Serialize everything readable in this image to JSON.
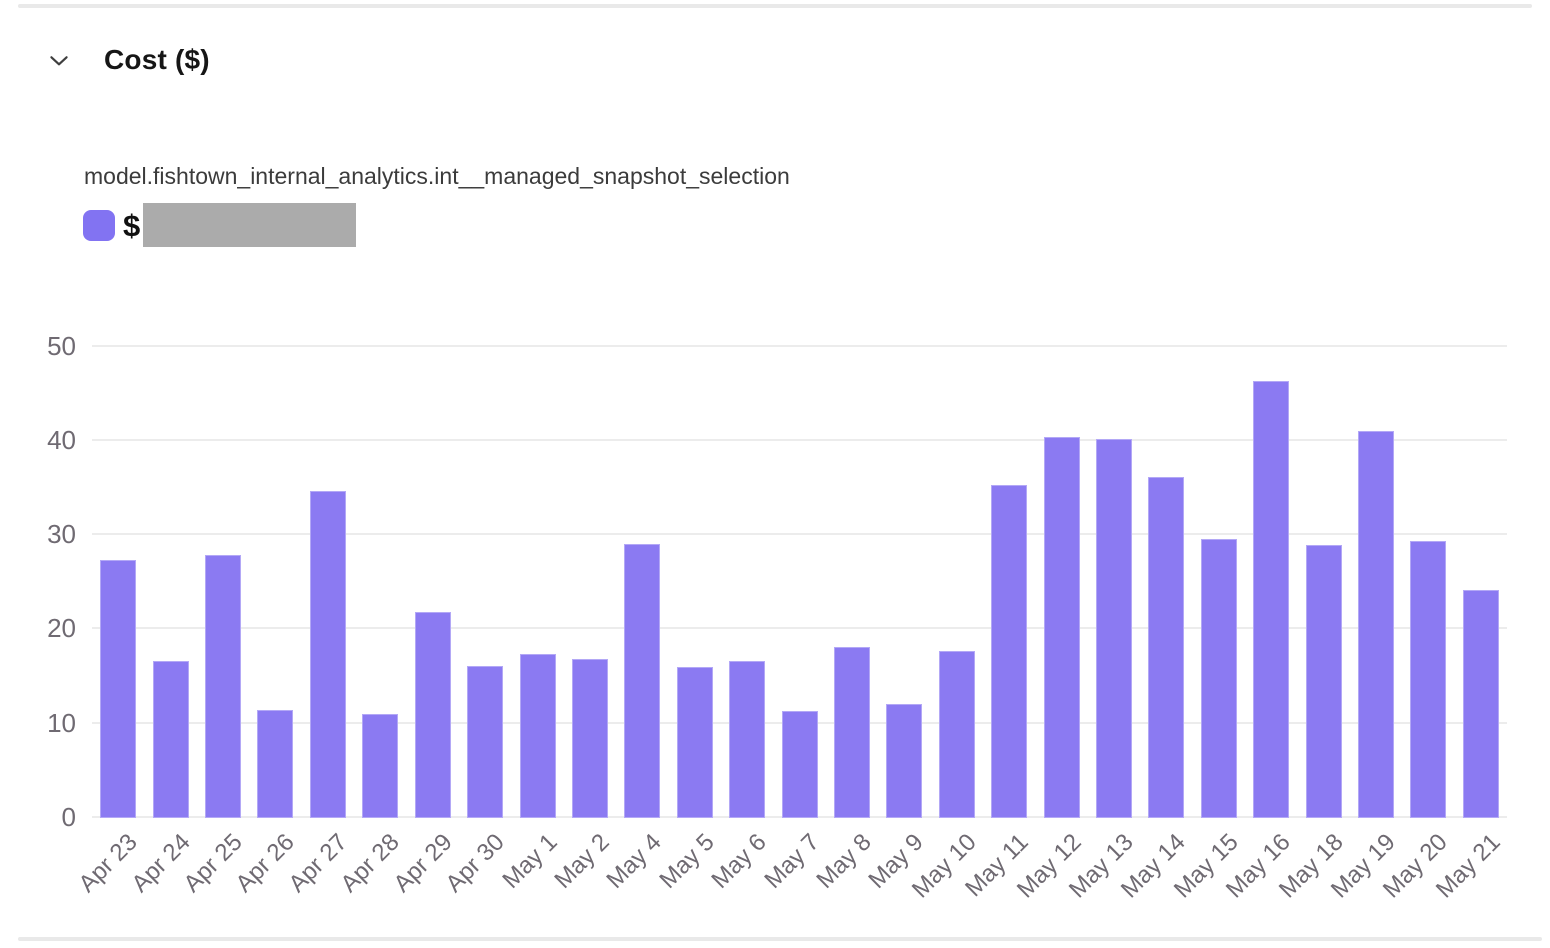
{
  "header": {
    "title": "Cost ($)",
    "collapse_icon": "chevron-down-icon"
  },
  "chart_data": {
    "type": "bar",
    "title": "model.fishtown_internal_analytics.int__managed_snapshot_selection",
    "xlabel": "",
    "ylabel": "",
    "ylim": [
      0,
      50
    ],
    "yticks": [
      0,
      10,
      20,
      30,
      40,
      50
    ],
    "grid": true,
    "legend_position": "top-left",
    "legend": {
      "swatch_color": "#8273f2",
      "label_prefix": "$",
      "value_redacted": true,
      "redaction_color": "#ababab"
    },
    "bar_color": "#8b7af2",
    "gridline_color": "#ececec",
    "tick_label_color": "#6f6a72",
    "categories": [
      "Apr 23",
      "Apr 24",
      "Apr 25",
      "Apr 26",
      "Apr 27",
      "Apr 28",
      "Apr 29",
      "Apr 30",
      "May 1",
      "May 2",
      "May 4",
      "May 5",
      "May 6",
      "May 7",
      "May 8",
      "May 9",
      "May 10",
      "May 11",
      "May 12",
      "May 13",
      "May 14",
      "May 15",
      "May 16",
      "May 18",
      "May 19",
      "May 20",
      "May 21"
    ],
    "values": [
      27.4,
      16.7,
      27.9,
      11.5,
      34.7,
      11.0,
      21.9,
      16.1,
      17.4,
      16.9,
      29.1,
      16.0,
      16.7,
      11.4,
      18.1,
      12.1,
      17.7,
      35.3,
      40.4,
      40.2,
      36.2,
      29.6,
      46.3,
      29.0,
      41.0,
      29.4,
      24.2
    ]
  }
}
